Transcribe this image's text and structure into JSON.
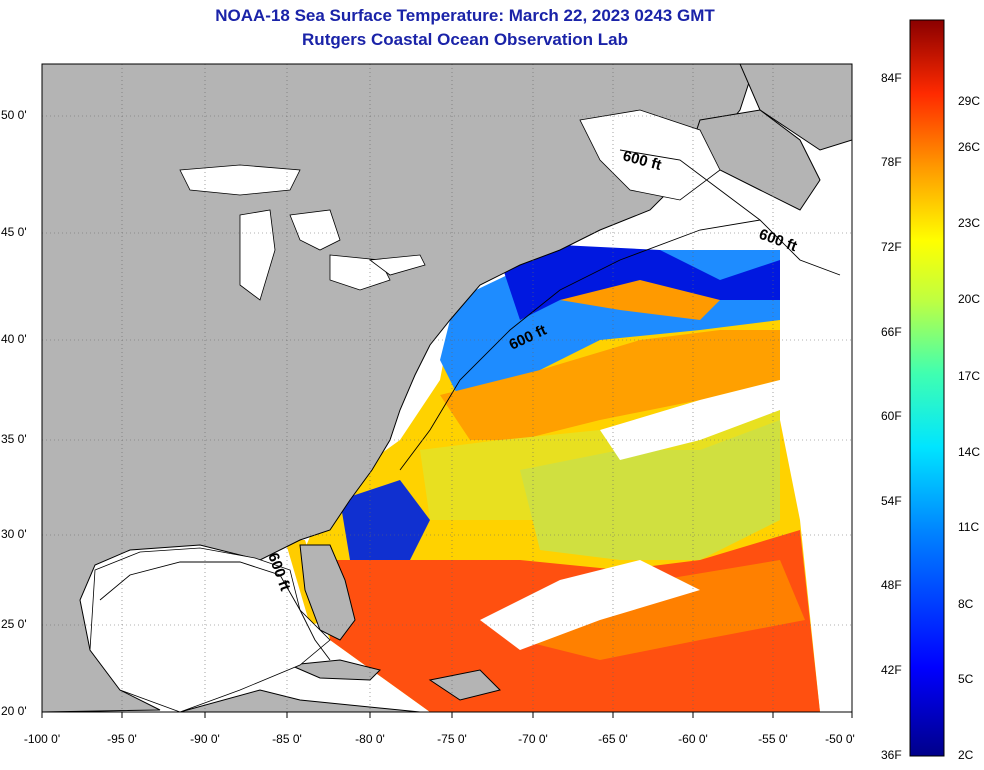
{
  "title": {
    "line1": "NOAA-18 Sea Surface Temperature:  March 22, 2023 0243 GMT",
    "line2": "Rutgers Coastal Ocean Observation Lab"
  },
  "axes": {
    "latitude_labels": [
      "50 0'",
      "45 0'",
      "40 0'",
      "35 0'",
      "30 0'",
      "25 0'",
      "20 0'"
    ],
    "longitude_labels": [
      "-100 0'",
      "-95 0'",
      "-90 0'",
      "-85 0'",
      "-80 0'",
      "-75 0'",
      "-70 0'",
      "-65 0'",
      "-60 0'",
      "-55 0'",
      "-50 0'"
    ]
  },
  "depth_contour_label": "600 ft",
  "colorbar": {
    "fahrenheit_labels": [
      "84F",
      "78F",
      "72F",
      "66F",
      "60F",
      "54F",
      "48F",
      "42F",
      "36F"
    ],
    "celsius_labels": [
      "29C",
      "26C",
      "23C",
      "20C",
      "17C",
      "14C",
      "11C",
      "8C",
      "5C",
      "2C"
    ]
  },
  "colors": {
    "land": "#b4b4b4",
    "no_data": "#ffffff",
    "title": "#1a23a8",
    "cold": "#00008a",
    "warm": "#8a0000"
  }
}
